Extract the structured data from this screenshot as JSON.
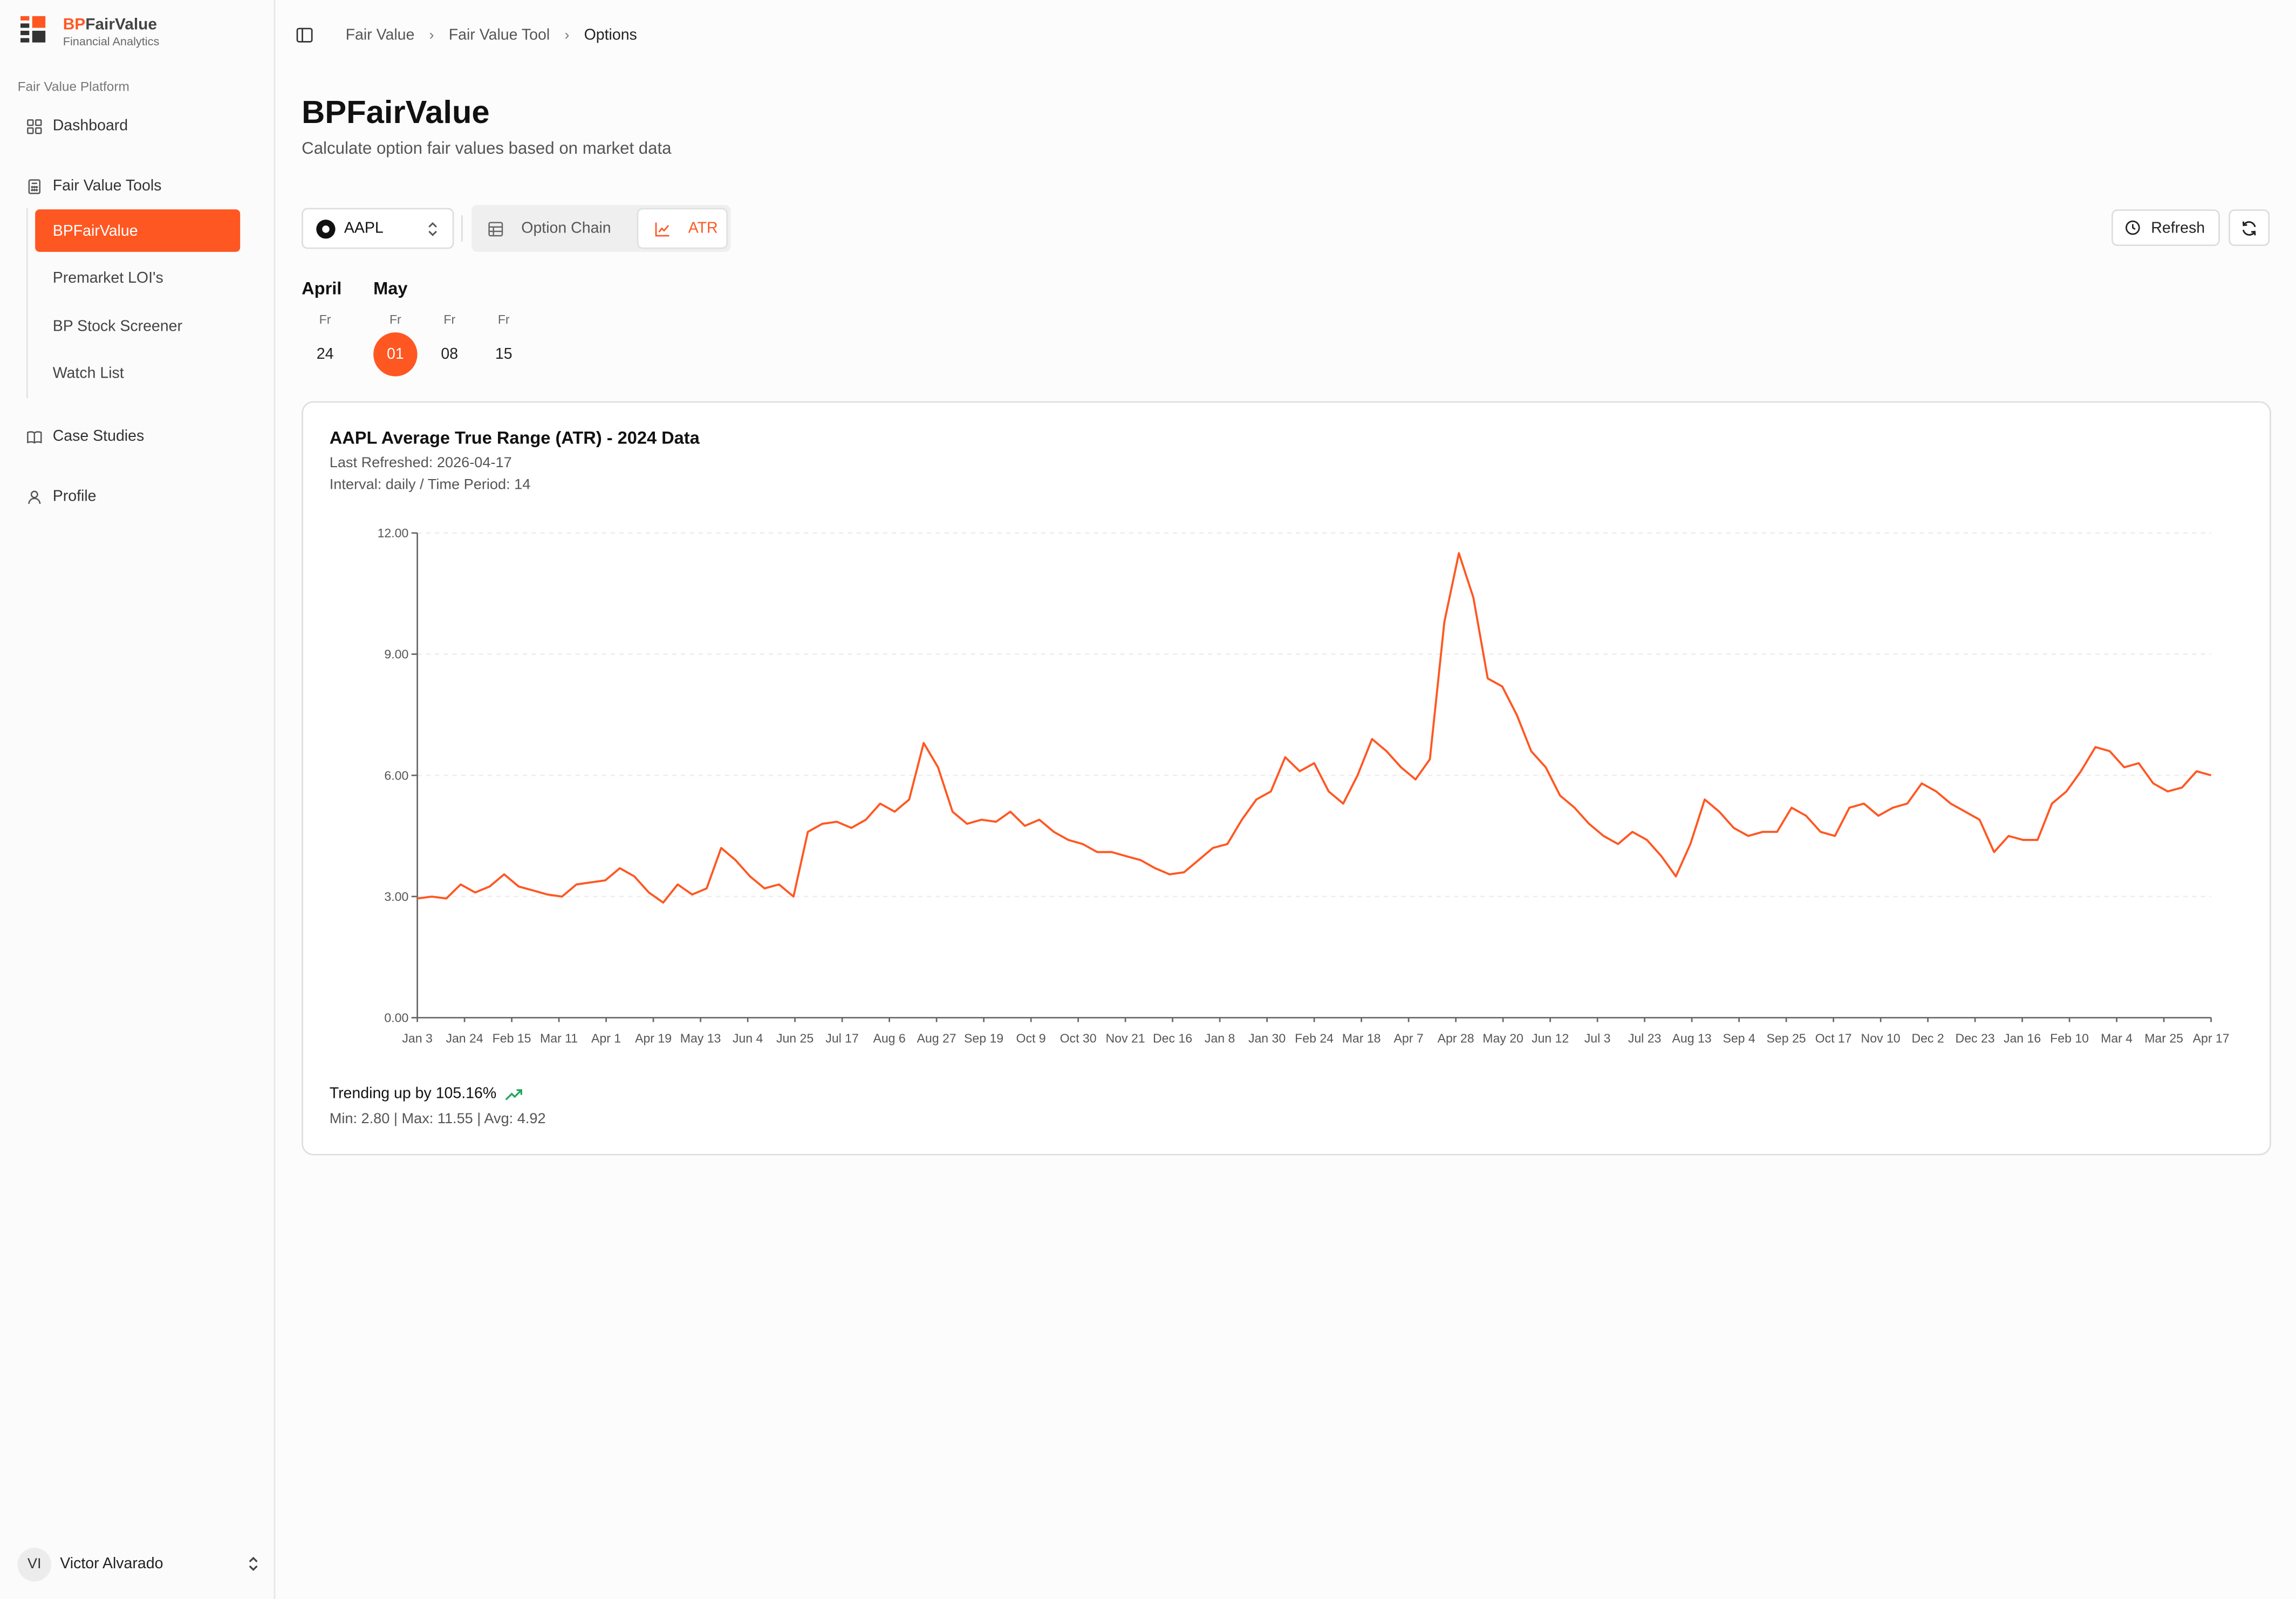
{
  "brand": {
    "prefix": "BP",
    "name": "FairValue",
    "subtitle": "Financial Analytics"
  },
  "sidebar": {
    "platform_label": "Fair Value Platform",
    "dashboard": "Dashboard",
    "tools_group": "Fair Value Tools",
    "tools_items": [
      "BPFairValue",
      "Premarket LOI's",
      "BP Stock Screener",
      "Watch List"
    ],
    "case_studies": "Case Studies",
    "profile": "Profile"
  },
  "user": {
    "initials": "VI",
    "name": "Victor Alvarado"
  },
  "breadcrumb": [
    "Fair Value",
    "Fair Value Tool",
    "Options"
  ],
  "page": {
    "title": "BPFairValue",
    "description": "Calculate option fair values based on market data"
  },
  "controls": {
    "ticker": "AAPL",
    "tabs": [
      "Option Chain",
      "ATR"
    ],
    "active_tab": "ATR",
    "refresh_label": "Refresh"
  },
  "calendar": {
    "months": [
      "April",
      "May"
    ],
    "dates": [
      {
        "dow": "Fr",
        "day": "24"
      },
      {
        "dow": "Fr",
        "day": "01"
      },
      {
        "dow": "Fr",
        "day": "08"
      },
      {
        "dow": "Fr",
        "day": "15"
      }
    ],
    "selected": "01"
  },
  "colors": {
    "accent": "#ff5722",
    "trend_up": "#22a55a"
  },
  "chart": {
    "title": "AAPL Average True Range (ATR) - 2024 Data",
    "last_refreshed": "Last Refreshed: 2026-04-17",
    "interval": "Interval: daily / Time Period: 14",
    "trend_text": "Trending up by 105.16%",
    "stats_text": "Min: 2.80 | Max: 11.55 | Avg: 4.92"
  },
  "chart_data": {
    "type": "line",
    "title": "AAPL Average True Range (ATR) - 2024 Data",
    "ylim": [
      0,
      12
    ],
    "yticks": [
      "0.00",
      "3.00",
      "6.00",
      "9.00",
      "12.00"
    ],
    "xticks": [
      "Jan 3",
      "Jan 24",
      "Feb 15",
      "Mar 11",
      "Apr 1",
      "Apr 19",
      "May 13",
      "Jun 4",
      "Jun 25",
      "Jul 17",
      "Aug 6",
      "Aug 27",
      "Sep 19",
      "Oct 9",
      "Oct 30",
      "Nov 21",
      "Dec 16",
      "Jan 8",
      "Jan 30",
      "Feb 24",
      "Mar 18",
      "Apr 7",
      "Apr 28",
      "May 20",
      "Jun 12",
      "Jul 3",
      "Jul 23",
      "Aug 13",
      "Sep 4",
      "Sep 25",
      "Oct 17",
      "Nov 10",
      "Dec 2",
      "Dec 23",
      "Jan 16",
      "Feb 10",
      "Mar 4",
      "Mar 25",
      "Apr 17"
    ],
    "grid": true,
    "series": [
      {
        "values": [
          2.95,
          3.0,
          2.95,
          3.3,
          3.1,
          3.25,
          3.55,
          3.25,
          3.15,
          3.05,
          3.0,
          3.3,
          3.35,
          3.4,
          3.7,
          3.5,
          3.1,
          2.85,
          3.3,
          3.05,
          3.2,
          4.2,
          3.9,
          3.5,
          3.2,
          3.3,
          3.0,
          4.6,
          4.8,
          4.85,
          4.7,
          4.9,
          5.3,
          5.1,
          5.4,
          6.8,
          6.2,
          5.1,
          4.8,
          4.9,
          4.85,
          5.1,
          4.75,
          4.9,
          4.6,
          4.4,
          4.3,
          4.1,
          4.1,
          4.0,
          3.9,
          3.7,
          3.55,
          3.6,
          3.9,
          4.2,
          4.3,
          4.9,
          5.4,
          5.6,
          6.45,
          6.1,
          6.3,
          5.6,
          5.3,
          6.0,
          6.9,
          6.6,
          6.2,
          5.9,
          6.4,
          9.8,
          11.5,
          10.4,
          8.4,
          8.2,
          7.5,
          6.6,
          6.2,
          5.5,
          5.2,
          4.8,
          4.5,
          4.3,
          4.6,
          4.4,
          4.0,
          3.5,
          4.3,
          5.4,
          5.1,
          4.7,
          4.5,
          4.6,
          4.6,
          5.2,
          5.0,
          4.6,
          4.5,
          5.2,
          5.3,
          5.0,
          5.2,
          5.3,
          5.8,
          5.6,
          5.3,
          5.1,
          4.9,
          4.1,
          4.5,
          4.4,
          4.4,
          5.3,
          5.6,
          6.1,
          6.7,
          6.6,
          6.2,
          6.3,
          5.8,
          5.6,
          5.7,
          6.1,
          6.0
        ]
      }
    ]
  }
}
